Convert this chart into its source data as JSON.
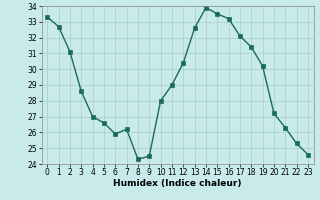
{
  "x": [
    0,
    1,
    2,
    3,
    4,
    5,
    6,
    7,
    8,
    9,
    10,
    11,
    12,
    13,
    14,
    15,
    16,
    17,
    18,
    19,
    20,
    21,
    22,
    23
  ],
  "y": [
    33.3,
    32.7,
    31.1,
    28.6,
    27.0,
    26.6,
    25.9,
    26.2,
    24.3,
    24.5,
    28.0,
    29.0,
    30.4,
    32.6,
    33.9,
    33.5,
    33.2,
    32.1,
    31.4,
    30.2,
    27.2,
    26.3,
    25.3,
    24.6
  ],
  "xlabel": "Humidex (Indice chaleur)",
  "ylim": [
    24,
    34
  ],
  "xlim": [
    -0.5,
    23.5
  ],
  "bg_color": "#c8eaea",
  "line_color": "#1a6b5a",
  "grid_color": "#a8cccc",
  "yticks": [
    24,
    25,
    26,
    27,
    28,
    29,
    30,
    31,
    32,
    33,
    34
  ],
  "xticks": [
    0,
    1,
    2,
    3,
    4,
    5,
    6,
    7,
    8,
    9,
    10,
    11,
    12,
    13,
    14,
    15,
    16,
    17,
    18,
    19,
    20,
    21,
    22,
    23
  ],
  "marker_size": 2.5,
  "line_width": 1.0,
  "tick_fontsize": 5.5,
  "xlabel_fontsize": 6.5
}
